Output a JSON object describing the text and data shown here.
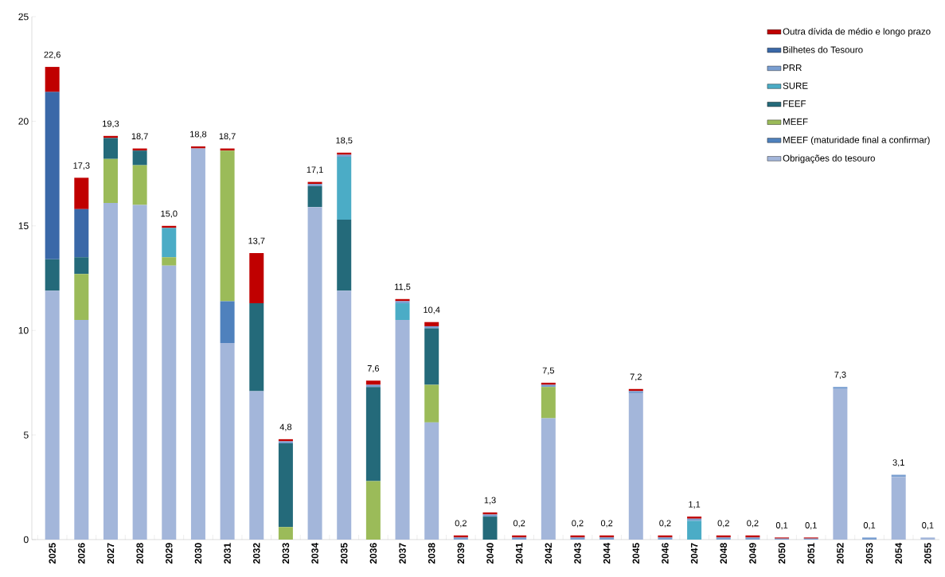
{
  "chart_data": {
    "type": "bar",
    "stacked": true,
    "legend": "top right",
    "categories": [
      "2025",
      "2026",
      "2027",
      "2028",
      "2029",
      "2030",
      "2031",
      "2032",
      "2033",
      "2034",
      "2035",
      "2036",
      "2037",
      "2038",
      "2039",
      "2040",
      "2041",
      "2042",
      "2043",
      "2044",
      "2045",
      "2046",
      "2047",
      "2048",
      "2049",
      "2050",
      "2051",
      "2052",
      "2053",
      "2054",
      "2055"
    ],
    "ylim": [
      0,
      25
    ],
    "yticks": [
      0,
      5,
      10,
      15,
      20,
      25
    ],
    "series": [
      {
        "name": "Obrigações do tesouro",
        "color": "#a3b6da",
        "values": [
          11.9,
          10.5,
          16.1,
          16.0,
          13.1,
          18.7,
          9.4,
          7.1,
          0,
          15.9,
          11.9,
          0,
          10.5,
          5.6,
          0,
          0,
          0,
          5.8,
          0,
          0,
          7.0,
          0,
          0,
          0,
          0,
          0,
          0,
          7.2,
          0,
          3.0,
          0.1
        ]
      },
      {
        "name": "MEEF (maturidade final a confirmar)",
        "color": "#4f81bd",
        "values": [
          0,
          0,
          0,
          0,
          0,
          0,
          2.0,
          0,
          0,
          0,
          0,
          0,
          0,
          0,
          0,
          0,
          0,
          0,
          0,
          0,
          0,
          0,
          0,
          0,
          0,
          0,
          0,
          0,
          0,
          0,
          0
        ]
      },
      {
        "name": "MEEF",
        "color": "#9bbb59",
        "values": [
          0,
          2.2,
          2.1,
          1.9,
          0.4,
          0,
          7.2,
          0,
          0.6,
          0,
          0,
          2.8,
          0,
          1.8,
          0,
          0,
          0,
          1.5,
          0,
          0,
          0,
          0,
          0,
          0,
          0,
          0,
          0,
          0,
          0,
          0,
          0
        ]
      },
      {
        "name": "FEEF",
        "color": "#246a7a",
        "values": [
          1.5,
          0.8,
          1.0,
          0.7,
          0,
          0,
          0,
          4.2,
          4.0,
          1.0,
          3.4,
          4.5,
          0,
          2.7,
          0,
          1.1,
          0,
          0,
          0,
          0,
          0,
          0,
          0,
          0,
          0,
          0,
          0,
          0,
          0,
          0,
          0
        ]
      },
      {
        "name": "SURE",
        "color": "#4bacc6",
        "values": [
          0,
          0,
          0,
          0,
          1.4,
          0,
          0,
          0,
          0,
          0,
          3.0,
          0,
          0.8,
          0,
          0,
          0,
          0,
          0,
          0,
          0,
          0,
          0,
          0.9,
          0,
          0,
          0,
          0,
          0,
          0,
          0,
          0
        ]
      },
      {
        "name": "PRR",
        "color": "#7a9fd1",
        "values": [
          0,
          0,
          0,
          0,
          0,
          0,
          0,
          0,
          0.1,
          0.1,
          0.1,
          0.1,
          0.1,
          0.1,
          0.1,
          0.1,
          0.1,
          0.1,
          0.1,
          0.1,
          0.1,
          0.1,
          0.1,
          0.1,
          0.1,
          0.05,
          0.05,
          0.1,
          0.1,
          0.1,
          0
        ]
      },
      {
        "name": "Bilhetes do Tesouro",
        "color": "#3a68a8",
        "values": [
          8.0,
          2.3,
          0,
          0,
          0,
          0,
          0,
          0,
          0,
          0,
          0,
          0,
          0,
          0,
          0,
          0,
          0,
          0,
          0,
          0,
          0,
          0,
          0,
          0,
          0,
          0,
          0,
          0,
          0,
          0,
          0
        ]
      },
      {
        "name": "Outra dívida de médio e longo prazo",
        "color": "#c00000",
        "values": [
          1.2,
          1.5,
          0.1,
          0.1,
          0.1,
          0.1,
          0.1,
          2.4,
          0.1,
          0.1,
          0.1,
          0.2,
          0.1,
          0.2,
          0.1,
          0.1,
          0.1,
          0.1,
          0.1,
          0.1,
          0.1,
          0.1,
          0.1,
          0.1,
          0.1,
          0.05,
          0.05,
          0,
          0,
          0,
          0
        ]
      }
    ],
    "totals": [
      "22,6",
      "17,3",
      "19,3",
      "18,7",
      "15,0",
      "18,8",
      "18,7",
      "13,7",
      "4,8",
      "17,1",
      "18,5",
      "7,6",
      "11,5",
      "10,4",
      "0,2",
      "1,3",
      "0,2",
      "7,5",
      "0,2",
      "0,2",
      "7,2",
      "0,2",
      "1,1",
      "0,2",
      "0,2",
      "0,1",
      "0,1",
      "7,3",
      "0,1",
      "3,1",
      "0,1"
    ]
  }
}
